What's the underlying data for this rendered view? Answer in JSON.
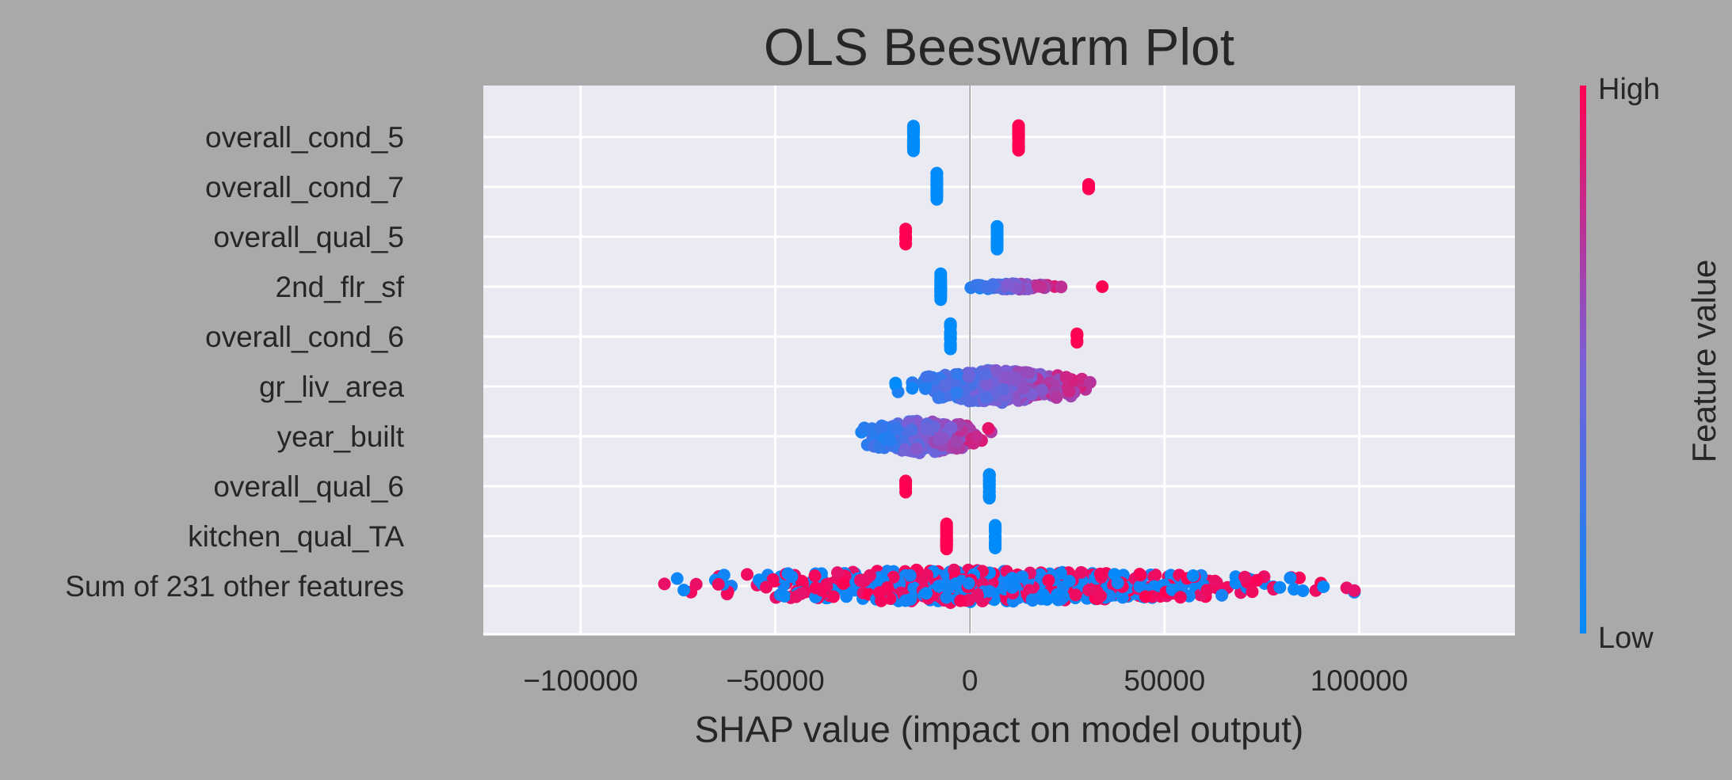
{
  "chart_data": {
    "type": "scatter",
    "subtype": "beeswarm",
    "title": "OLS Beeswarm Plot",
    "xlabel": "SHAP value (impact on model output)",
    "ylabel": "",
    "xlim": [
      -125000,
      140000
    ],
    "xticks": [
      -100000,
      -50000,
      0,
      50000,
      100000
    ],
    "xtick_labels": [
      "−100000",
      "−50000",
      "0",
      "50000",
      "100000"
    ],
    "grid": true,
    "colors": {
      "figure_background": "#a9a9a9",
      "axes_background": "#eaeaf2",
      "grid": "#ffffff",
      "low": "#008bfb",
      "mid": "#7b5fd6",
      "high": "#ff0052",
      "text": "#262626"
    },
    "colorbar": {
      "label": "Feature value",
      "high_label": "High",
      "low_label": "Low"
    },
    "features": [
      {
        "name": "overall_cond_5",
        "clusters": [
          {
            "x_min": -14500,
            "x_max": -14500,
            "count": 25,
            "spread": 0.28,
            "color": "low"
          },
          {
            "x_min": 12500,
            "x_max": 12500,
            "count": 25,
            "spread": 0.28,
            "color": "high"
          }
        ]
      },
      {
        "name": "overall_cond_7",
        "clusters": [
          {
            "x_min": -8500,
            "x_max": -8500,
            "count": 25,
            "spread": 0.28,
            "color": "low"
          },
          {
            "x_min": 30500,
            "x_max": 30500,
            "count": 5,
            "spread": 0.12,
            "color": "high"
          }
        ]
      },
      {
        "name": "overall_qual_5",
        "clusters": [
          {
            "x_min": -16500,
            "x_max": -16500,
            "count": 8,
            "spread": 0.16,
            "color": "high"
          },
          {
            "x_min": 7000,
            "x_max": 7000,
            "count": 25,
            "spread": 0.25,
            "color": "low"
          }
        ]
      },
      {
        "name": "2nd_flr_sf",
        "clusters": [
          {
            "x_min": -7500,
            "x_max": -7500,
            "count": 25,
            "spread": 0.26,
            "color": "low"
          },
          {
            "x_min": -3000,
            "x_max": 28000,
            "count": 70,
            "spread": 0.06,
            "color": "gradient"
          },
          {
            "x_min": 34000,
            "x_max": 34000,
            "count": 1,
            "spread": 0.0,
            "color": "high"
          }
        ]
      },
      {
        "name": "overall_cond_6",
        "clusters": [
          {
            "x_min": -5000,
            "x_max": -5000,
            "count": 25,
            "spread": 0.26,
            "color": "low"
          },
          {
            "x_min": 27500,
            "x_max": 27500,
            "count": 6,
            "spread": 0.14,
            "color": "high"
          }
        ]
      },
      {
        "name": "gr_liv_area",
        "clusters": [
          {
            "x_min": -23000,
            "x_max": 42000,
            "count": 330,
            "spread": 0.34,
            "color": "gradient"
          }
        ]
      },
      {
        "name": "year_built",
        "clusters": [
          {
            "x_min": -33000,
            "x_max": 13500,
            "count": 270,
            "spread": 0.34,
            "color": "gradient"
          }
        ]
      },
      {
        "name": "overall_qual_6",
        "clusters": [
          {
            "x_min": -16500,
            "x_max": -16500,
            "count": 7,
            "spread": 0.14,
            "color": "high"
          },
          {
            "x_min": 5000,
            "x_max": 5000,
            "count": 25,
            "spread": 0.26,
            "color": "low"
          }
        ]
      },
      {
        "name": "kitchen_qual_TA",
        "clusters": [
          {
            "x_min": -6000,
            "x_max": -6000,
            "count": 25,
            "spread": 0.26,
            "color": "high"
          },
          {
            "x_min": 6500,
            "x_max": 6500,
            "count": 22,
            "spread": 0.24,
            "color": "low"
          }
        ]
      },
      {
        "name": "Sum of 231 other features",
        "clusters": [
          {
            "x_min": -111000,
            "x_max": 128000,
            "count": 650,
            "spread": 0.34,
            "color": "mixed"
          }
        ]
      }
    ]
  }
}
